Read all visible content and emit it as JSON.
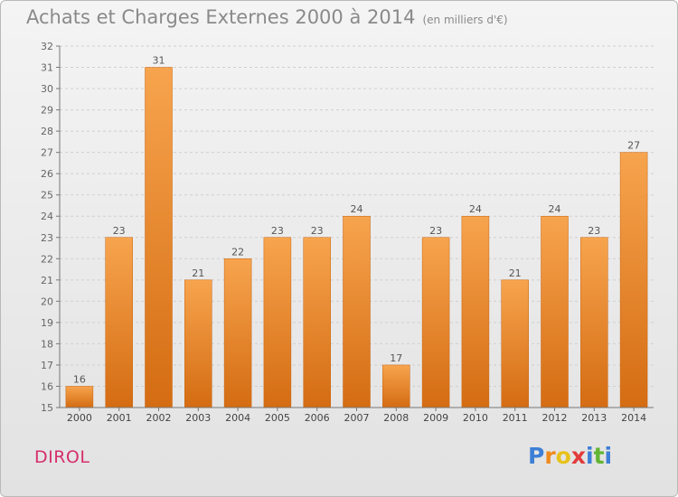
{
  "title": "Achats et Charges Externes 2000 à 2014",
  "subtitle": "(en milliers d'€)",
  "commune": "DIROL",
  "logo": {
    "text": "Proxiti",
    "letters": [
      {
        "ch": "P",
        "color": "#3d7fd6"
      },
      {
        "ch": "r",
        "color": "#f08a1c"
      },
      {
        "ch": "o",
        "color": "#e8c21a"
      },
      {
        "ch": "x",
        "color": "#e23b3b"
      },
      {
        "ch": "i",
        "color": "#3d7fd6"
      },
      {
        "ch": "t",
        "color": "#62b531"
      },
      {
        "ch": "i",
        "color": "#3d7fd6"
      }
    ]
  },
  "colors": {
    "bar_top": "#f7a44e",
    "bar_bottom": "#d46c12",
    "bar_edge": "#c9630e",
    "grid": "#cfcfcf",
    "title": "#8a8a8a",
    "commune": "#d62f6c"
  },
  "chart_data": {
    "type": "bar",
    "categories": [
      "2000",
      "2001",
      "2002",
      "2003",
      "2004",
      "2005",
      "2006",
      "2007",
      "2008",
      "2009",
      "2010",
      "2011",
      "2012",
      "2013",
      "2014"
    ],
    "values": [
      16,
      23,
      31,
      21,
      22,
      23,
      23,
      24,
      17,
      23,
      24,
      21,
      24,
      23,
      27
    ],
    "ylim": [
      15,
      32
    ],
    "yticks": [
      15,
      16,
      17,
      18,
      19,
      20,
      21,
      22,
      23,
      24,
      25,
      26,
      27,
      28,
      29,
      30,
      31,
      32
    ],
    "grid": true,
    "data_labels": true
  }
}
